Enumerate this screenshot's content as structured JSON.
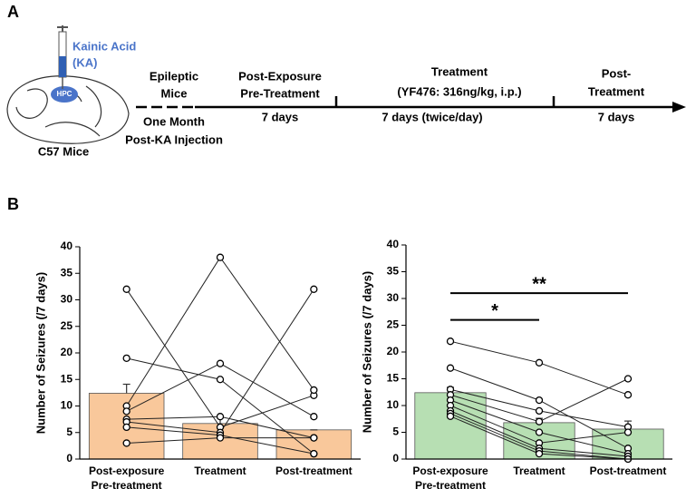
{
  "panel_a": {
    "label": "A",
    "drug": "Kainic Acid",
    "drug_abbr": "(KA)",
    "region": "HPC",
    "mouse": "C57 Mice",
    "stage1": [
      "Epileptic",
      "Mice"
    ],
    "stage1_time": [
      "One Month",
      "Post-KA Injection"
    ],
    "stage2": [
      "Post-Exposure",
      "Pre-Treatment"
    ],
    "stage2_time": "7 days",
    "stage3": [
      "Treatment",
      "(YF476: 316ng/kg, i.p.)"
    ],
    "stage3_time": "7 days (twice/day)",
    "stage4": [
      "Post-",
      "Treatment"
    ],
    "stage4_time": "7 days"
  },
  "panel_b": {
    "label": "B"
  },
  "chart_data": [
    {
      "type": "bar",
      "ylabel": "Number of Seizures (/7 days)",
      "color": "#f9c89b",
      "categories": [
        [
          "Post-exposure",
          "Pre-treatment"
        ],
        [
          "Treatment"
        ],
        [
          "Post-treatment"
        ]
      ],
      "values": [
        12.4,
        6.7,
        5.5
      ],
      "errors": [
        1.7,
        1.3,
        0
      ],
      "subjects": [
        [
          32,
          6,
          12
        ],
        [
          19,
          15,
          1
        ],
        [
          10,
          38,
          13
        ],
        [
          9,
          18,
          8
        ],
        [
          7.5,
          8,
          4
        ],
        [
          7,
          5,
          32
        ],
        [
          6,
          4.5,
          1
        ],
        [
          3,
          4,
          4
        ]
      ],
      "ylim": [
        0,
        40
      ],
      "yticks": [
        0,
        5,
        10,
        15,
        20,
        25,
        30,
        35,
        40
      ]
    },
    {
      "type": "bar",
      "ylabel": "Number of Seizures (/7 days)",
      "color": "#b7dfb3",
      "categories": [
        [
          "Post-exposure",
          "Pre-treatment"
        ],
        [
          "Treatment"
        ],
        [
          "Post-treatment"
        ]
      ],
      "values": [
        12.4,
        6.8,
        5.6
      ],
      "errors": [
        1.0,
        0.8,
        1.5
      ],
      "subjects": [
        [
          22,
          18,
          12
        ],
        [
          17,
          11,
          2
        ],
        [
          13,
          9,
          6
        ],
        [
          12,
          7,
          15
        ],
        [
          11,
          5,
          1
        ],
        [
          10,
          3,
          5
        ],
        [
          9,
          2,
          0.5
        ],
        [
          8.5,
          1.5,
          0
        ],
        [
          8,
          1,
          0
        ]
      ],
      "ylim": [
        0,
        40
      ],
      "yticks": [
        0,
        5,
        10,
        15,
        20,
        25,
        30,
        35,
        40
      ],
      "annotations": [
        "*",
        "**"
      ]
    }
  ]
}
